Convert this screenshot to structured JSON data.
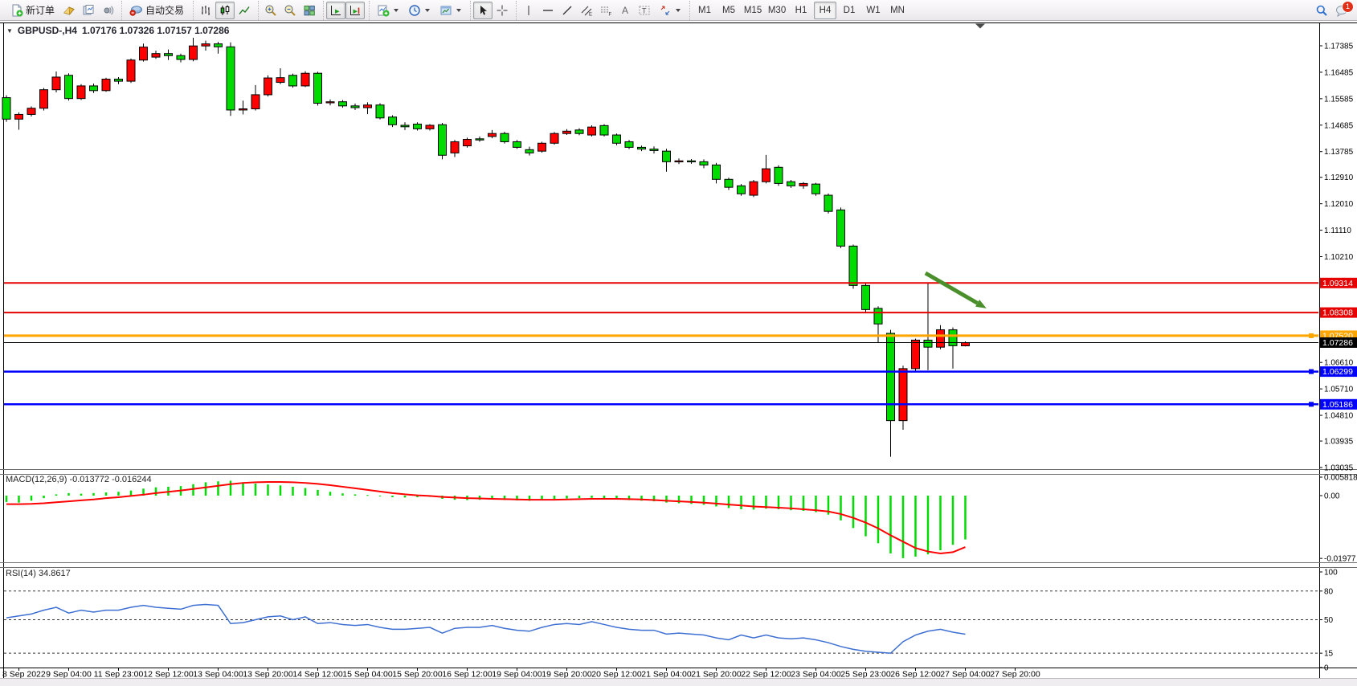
{
  "toolbar": {
    "new_order_label": "新订单",
    "autotrade_label": "自动交易",
    "timeframes": [
      "M1",
      "M5",
      "M15",
      "M30",
      "H1",
      "H4",
      "D1",
      "W1",
      "MN"
    ],
    "active_timeframe": "H4",
    "chat_badge": "1"
  },
  "chart": {
    "symbol_label": "GBPUSD-,H4",
    "ohlc_label": "1.07176 1.07326 1.07157 1.07286",
    "macd_label": "MACD(12,26,9) -0.013772 -0.016244",
    "rsi_label": "RSI(14) 34.8617"
  },
  "chart_data": [
    {
      "type": "candlestick",
      "symbol": "GBPUSD-",
      "period": "H4",
      "current_open": 1.07176,
      "current_high": 1.07326,
      "current_low": 1.07157,
      "current_close": 1.07286,
      "up_color": "#ff0000",
      "down_color": "#00db00",
      "ylim": [
        1.03035,
        1.1817
      ],
      "yticks": [
        "1.17385",
        "1.16485",
        "1.15585",
        "1.14685",
        "1.13785",
        "1.12910",
        "1.12010",
        "1.11110",
        "1.10210",
        "1.06610",
        "1.05710",
        "1.04810",
        "1.03935",
        "1.03035"
      ],
      "xticks": [
        "8 Sep 2022",
        "9 Sep 04:00",
        "11 Sep 23:00",
        "12 Sep 12:00",
        "13 Sep 04:00",
        "13 Sep 20:00",
        "14 Sep 12:00",
        "15 Sep 04:00",
        "15 Sep 20:00",
        "16 Sep 12:00",
        "19 Sep 04:00",
        "19 Sep 20:00",
        "20 Sep 12:00",
        "21 Sep 04:00",
        "21 Sep 20:00",
        "22 Sep 12:00",
        "23 Sep 04:00",
        "25 Sep 23:00",
        "26 Sep 12:00",
        "27 Sep 04:00",
        "27 Sep 20:00"
      ],
      "levels": [
        {
          "price": 1.09314,
          "label": "1.09314",
          "color": "#e60000",
          "width": 2,
          "handle": false
        },
        {
          "price": 1.08308,
          "label": "1.08308",
          "color": "#e60000",
          "width": 2,
          "handle": false
        },
        {
          "price": 1.0752,
          "label": "1.07520",
          "color": "#ffa500",
          "width": 3,
          "handle": true
        },
        {
          "price": 1.07286,
          "label": "1.07286",
          "color": "#000000",
          "width": 1,
          "handle": false,
          "bid": true
        },
        {
          "price": 1.06299,
          "label": "1.06299",
          "color": "#0000ff",
          "width": 2.5,
          "handle": true
        },
        {
          "price": 1.05186,
          "label": "1.05186",
          "color": "#0000ff",
          "width": 2.5,
          "handle": true
        }
      ],
      "annotations": [
        {
          "type": "arrow",
          "from_i": 73.8,
          "from_p": 1.0965,
          "to_i": 78.7,
          "to_p": 1.0845,
          "color": "#4a8f2c"
        }
      ],
      "ohlc": [
        [
          1.1562,
          1.157,
          1.148,
          1.1489
        ],
        [
          1.1489,
          1.1512,
          1.1453,
          1.1505
        ],
        [
          1.1505,
          1.1532,
          1.1498,
          1.1526
        ],
        [
          1.1526,
          1.1595,
          1.1518,
          1.1589
        ],
        [
          1.1589,
          1.1651,
          1.158,
          1.1632
        ],
        [
          1.1638,
          1.1645,
          1.1552,
          1.1559
        ],
        [
          1.1559,
          1.1608,
          1.1554,
          1.1602
        ],
        [
          1.1602,
          1.161,
          1.1578,
          1.1586
        ],
        [
          1.1586,
          1.163,
          1.1582,
          1.1625
        ],
        [
          1.1625,
          1.1632,
          1.1608,
          1.1618
        ],
        [
          1.1618,
          1.1695,
          1.1612,
          1.169
        ],
        [
          1.169,
          1.1746,
          1.1685,
          1.1734
        ],
        [
          1.17,
          1.1722,
          1.1694,
          1.1712
        ],
        [
          1.1712,
          1.1726,
          1.169,
          1.1705
        ],
        [
          1.1705,
          1.1712,
          1.1682,
          1.1692
        ],
        [
          1.1692,
          1.1766,
          1.1686,
          1.1738
        ],
        [
          1.1738,
          1.1756,
          1.1722,
          1.1745
        ],
        [
          1.1745,
          1.1752,
          1.1712,
          1.1735
        ],
        [
          1.1735,
          1.175,
          1.15,
          1.152
        ],
        [
          1.152,
          1.1552,
          1.1505,
          1.1524
        ],
        [
          1.1524,
          1.1605,
          1.1518,
          1.1572
        ],
        [
          1.1572,
          1.1638,
          1.1566,
          1.1629
        ],
        [
          1.1614,
          1.1662,
          1.1608,
          1.163
        ],
        [
          1.1638,
          1.1644,
          1.1596,
          1.1602
        ],
        [
          1.1602,
          1.1652,
          1.1598,
          1.1645
        ],
        [
          1.1645,
          1.165,
          1.1535,
          1.1543
        ],
        [
          1.1545,
          1.1556,
          1.1536,
          1.1548
        ],
        [
          1.1548,
          1.1554,
          1.1528,
          1.1534
        ],
        [
          1.1534,
          1.1542,
          1.152,
          1.1528
        ],
        [
          1.1528,
          1.1546,
          1.1506,
          1.1537
        ],
        [
          1.1537,
          1.1543,
          1.1488,
          1.1493
        ],
        [
          1.1496,
          1.1502,
          1.1462,
          1.147
        ],
        [
          1.1468,
          1.1478,
          1.1452,
          1.1463
        ],
        [
          1.1472,
          1.1478,
          1.145,
          1.1456
        ],
        [
          1.1456,
          1.1472,
          1.145,
          1.1468
        ],
        [
          1.147,
          1.1476,
          1.1352,
          1.1366
        ],
        [
          1.1374,
          1.1418,
          1.136,
          1.1412
        ],
        [
          1.1398,
          1.1426,
          1.1392,
          1.142
        ],
        [
          1.1422,
          1.143,
          1.1412,
          1.1418
        ],
        [
          1.143,
          1.1452,
          1.1424,
          1.144
        ],
        [
          1.144,
          1.1446,
          1.1406,
          1.1412
        ],
        [
          1.1412,
          1.1418,
          1.1388,
          1.1393
        ],
        [
          1.1385,
          1.1395,
          1.1365,
          1.1374
        ],
        [
          1.138,
          1.1412,
          1.1375,
          1.1407
        ],
        [
          1.1407,
          1.1445,
          1.1402,
          1.144
        ],
        [
          1.144,
          1.1455,
          1.1435,
          1.1448
        ],
        [
          1.1452,
          1.1458,
          1.1434,
          1.144
        ],
        [
          1.1435,
          1.1468,
          1.143,
          1.1462
        ],
        [
          1.1467,
          1.1472,
          1.143,
          1.1435
        ],
        [
          1.1435,
          1.144,
          1.14,
          1.1407
        ],
        [
          1.1412,
          1.1418,
          1.1387,
          1.1393
        ],
        [
          1.1393,
          1.1399,
          1.138,
          1.1387
        ],
        [
          1.1387,
          1.1396,
          1.1372,
          1.1382
        ],
        [
          1.138,
          1.1388,
          1.131,
          1.1344
        ],
        [
          1.1344,
          1.1355,
          1.1336,
          1.1347
        ],
        [
          1.1347,
          1.1353,
          1.1337,
          1.1344
        ],
        [
          1.1344,
          1.1352,
          1.1322,
          1.1333
        ],
        [
          1.1333,
          1.134,
          1.127,
          1.1284
        ],
        [
          1.1284,
          1.129,
          1.1248,
          1.1257
        ],
        [
          1.1262,
          1.1268,
          1.1228,
          1.1235
        ],
        [
          1.123,
          1.1282,
          1.1224,
          1.1276
        ],
        [
          1.1276,
          1.1367,
          1.127,
          1.132
        ],
        [
          1.1325,
          1.1332,
          1.1262,
          1.127
        ],
        [
          1.1276,
          1.1282,
          1.1255,
          1.1262
        ],
        [
          1.1262,
          1.1275,
          1.1252,
          1.127
        ],
        [
          1.1268,
          1.1272,
          1.1228,
          1.1235
        ],
        [
          1.123,
          1.1236,
          1.1168,
          1.1175
        ],
        [
          1.118,
          1.1188,
          1.105,
          1.1057
        ],
        [
          1.1057,
          1.1062,
          1.0912,
          1.0923
        ],
        [
          1.0923,
          1.093,
          1.0832,
          1.0841
        ],
        [
          1.0845,
          1.0852,
          1.073,
          1.0792
        ],
        [
          1.076,
          1.0772,
          1.034,
          1.0463
        ],
        [
          1.0463,
          1.065,
          1.0432,
          1.064
        ],
        [
          1.064,
          1.0742,
          1.063,
          1.0737
        ],
        [
          1.0737,
          1.0933,
          1.0635,
          1.0713
        ],
        [
          1.0713,
          1.0788,
          1.0706,
          1.0772
        ],
        [
          1.0772,
          1.078,
          1.064,
          1.0718
        ],
        [
          1.07176,
          1.07326,
          1.07157,
          1.07286
        ]
      ]
    },
    {
      "type": "bar",
      "name": "MACD",
      "params": "12,26,9",
      "current_macd": -0.013772,
      "current_signal": -0.016244,
      "bar_color": "#00db00",
      "signal_color": "#ff0000",
      "ylim": [
        -0.0205,
        0.0062
      ],
      "yticks": [
        "0.005818",
        "0.00",
        "-0.01977"
      ],
      "values": [
        -0.002,
        -0.0022,
        -0.0016,
        -0.0008,
        0.0004,
        0.0008,
        0.0006,
        0.0008,
        0.001,
        0.0012,
        0.0016,
        0.0022,
        0.0026,
        0.0028,
        0.003,
        0.0036,
        0.0042,
        0.0045,
        0.0047,
        0.0042,
        0.0038,
        0.0035,
        0.0032,
        0.0028,
        0.0024,
        0.0018,
        0.0012,
        0.0007,
        0.0004,
        0.0002,
        -0.0002,
        -0.0005,
        -0.0006,
        -0.0005,
        -0.0004,
        -0.001,
        -0.0013,
        -0.0014,
        -0.0013,
        -0.0012,
        -0.0013,
        -0.0015,
        -0.0016,
        -0.0014,
        -0.0011,
        -0.0009,
        -0.0008,
        -0.0007,
        -0.0008,
        -0.0011,
        -0.0014,
        -0.0016,
        -0.0018,
        -0.0022,
        -0.0024,
        -0.0026,
        -0.0029,
        -0.0034,
        -0.0039,
        -0.0043,
        -0.0044,
        -0.0041,
        -0.0043,
        -0.0046,
        -0.0048,
        -0.0052,
        -0.006,
        -0.0078,
        -0.0102,
        -0.0128,
        -0.015,
        -0.0182,
        -0.0197,
        -0.0192,
        -0.0185,
        -0.0172,
        -0.0155,
        -0.0138
      ],
      "signal": [
        -0.0027,
        -0.0027,
        -0.0026,
        -0.0024,
        -0.0021,
        -0.0018,
        -0.0015,
        -0.0012,
        -0.0008,
        -0.0005,
        -0.0001,
        0.0003,
        0.0008,
        0.0012,
        0.0016,
        0.0021,
        0.0026,
        0.0031,
        0.0036,
        0.004,
        0.0042,
        0.0043,
        0.0043,
        0.0042,
        0.004,
        0.0037,
        0.0033,
        0.0028,
        0.0023,
        0.0018,
        0.0013,
        0.0008,
        0.0004,
        0.0001,
        -0.0001,
        -0.0004,
        -0.0006,
        -0.0008,
        -0.0009,
        -0.001,
        -0.0011,
        -0.0012,
        -0.0013,
        -0.0013,
        -0.0013,
        -0.0012,
        -0.0011,
        -0.001,
        -0.001,
        -0.001,
        -0.0011,
        -0.0012,
        -0.0014,
        -0.0016,
        -0.0018,
        -0.002,
        -0.0022,
        -0.0025,
        -0.0028,
        -0.0031,
        -0.0034,
        -0.0036,
        -0.0038,
        -0.004,
        -0.0043,
        -0.0046,
        -0.005,
        -0.0058,
        -0.007,
        -0.0085,
        -0.0103,
        -0.0125,
        -0.0145,
        -0.0165,
        -0.0176,
        -0.0182,
        -0.0178,
        -0.0162
      ]
    },
    {
      "type": "line",
      "name": "RSI",
      "params": "14",
      "current": 34.8617,
      "line_color": "#3d6fd2",
      "ylim": [
        0,
        100
      ],
      "levels": [
        80,
        50,
        15
      ],
      "yticks": [
        "100",
        "80",
        "50",
        "15",
        "0"
      ],
      "values": [
        52,
        54,
        56,
        60,
        63,
        57,
        60,
        58,
        60,
        60,
        63,
        65,
        63,
        62,
        61,
        65,
        66,
        65,
        46,
        47,
        50,
        53,
        54,
        50,
        53,
        46,
        47,
        45,
        44,
        45,
        42,
        40,
        40,
        41,
        42,
        36,
        41,
        42,
        42,
        44,
        41,
        39,
        38,
        42,
        45,
        46,
        45,
        48,
        45,
        42,
        40,
        39,
        39,
        35,
        36,
        35,
        34,
        31,
        29,
        34,
        31,
        34,
        31,
        30,
        31,
        29,
        26,
        22,
        19,
        17,
        16,
        15,
        27,
        34,
        38,
        40,
        37,
        34.86
      ]
    }
  ]
}
